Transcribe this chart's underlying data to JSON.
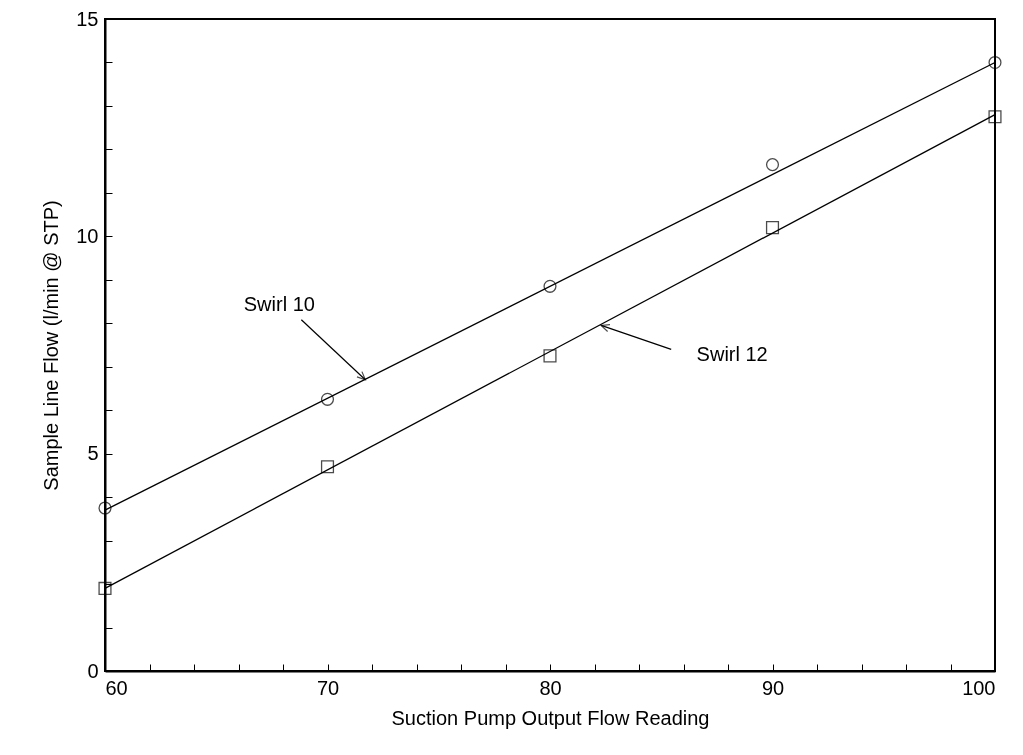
{
  "chart_data": {
    "type": "scatter",
    "xlabel": "Suction Pump Output Flow Reading",
    "ylabel": "Sample Line Flow (l/min @ STP)",
    "xlim": [
      60,
      100
    ],
    "ylim": [
      0,
      15
    ],
    "xticks": [
      60,
      {
        "value": 62,
        "label": null
      },
      {
        "value": 64,
        "label": null
      },
      {
        "value": 66,
        "label": null
      },
      {
        "value": 68,
        "label": null
      },
      70,
      {
        "value": 72,
        "label": null
      },
      {
        "value": 74,
        "label": null
      },
      {
        "value": 76,
        "label": null
      },
      {
        "value": 78,
        "label": null
      },
      80,
      {
        "value": 82,
        "label": null
      },
      {
        "value": 84,
        "label": null
      },
      {
        "value": 86,
        "label": null
      },
      {
        "value": 88,
        "label": null
      },
      90,
      {
        "value": 92,
        "label": null
      },
      {
        "value": 94,
        "label": null
      },
      {
        "value": 96,
        "label": null
      },
      {
        "value": 98,
        "label": null
      },
      100
    ],
    "yticks": [
      0,
      {
        "value": 1,
        "label": null
      },
      {
        "value": 2,
        "label": null
      },
      {
        "value": 3,
        "label": null
      },
      {
        "value": 4,
        "label": null
      },
      5,
      {
        "value": 6,
        "label": null
      },
      {
        "value": 7,
        "label": null
      },
      {
        "value": 8,
        "label": null
      },
      {
        "value": 9,
        "label": null
      },
      10,
      {
        "value": 11,
        "label": null
      },
      {
        "value": 12,
        "label": null
      },
      {
        "value": 13,
        "label": null
      },
      {
        "value": 14,
        "label": null
      },
      15
    ],
    "series": [
      {
        "type": "scatter",
        "marker": "circle",
        "color": "#000000",
        "x": [
          60,
          70,
          80,
          90,
          100
        ],
        "values": [
          3.75,
          6.25,
          8.85,
          11.65,
          14.0
        ]
      },
      {
        "type": "scatter",
        "marker": "square",
        "color": "#000000",
        "x": [
          60,
          70,
          80,
          90,
          100
        ],
        "values": [
          1.9,
          4.7,
          7.25,
          10.2,
          12.75
        ]
      },
      {
        "type": "line",
        "color": "#000000",
        "x": [
          60,
          100
        ],
        "values": [
          3.7,
          14.0
        ]
      },
      {
        "type": "line",
        "color": "#000000",
        "x": [
          60,
          100
        ],
        "values": [
          1.9,
          12.8
        ]
      }
    ],
    "annotations": [
      {
        "text": "Swirl 10",
        "x": 71.7,
        "y": 6.7
      },
      {
        "text": "Swirl 12",
        "x": 82.3,
        "y": 7.95
      }
    ]
  }
}
